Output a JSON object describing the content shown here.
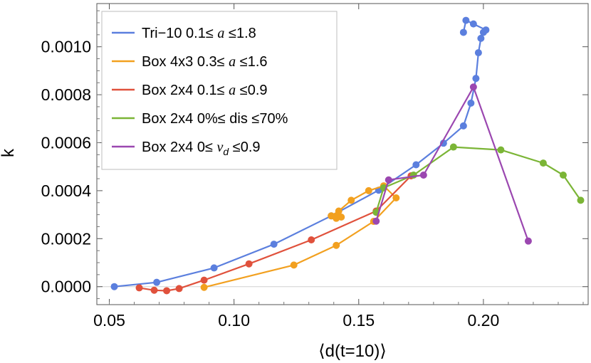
{
  "chart_data": {
    "type": "scatter",
    "title": "",
    "xlabel": "⟨d(t=10)⟩",
    "ylabel": "k",
    "xlim": [
      0.045,
      0.242
    ],
    "ylim": [
      -7.5e-05,
      0.00118
    ],
    "x_ticks": [
      {
        "value": 0.05,
        "label": "0.05"
      },
      {
        "value": 0.1,
        "label": "0.10"
      },
      {
        "value": 0.15,
        "label": "0.15"
      },
      {
        "value": 0.2,
        "label": "0.20"
      }
    ],
    "y_ticks": [
      {
        "value": 0.0,
        "label": "0.0000"
      },
      {
        "value": 0.0002,
        "label": "0.0002"
      },
      {
        "value": 0.0004,
        "label": "0.0004"
      },
      {
        "value": 0.0006,
        "label": "0.0006"
      },
      {
        "value": 0.0008,
        "label": "0.0008"
      },
      {
        "value": 0.001,
        "label": "0.0010"
      }
    ],
    "legend_position": "top-left",
    "series": [
      {
        "name": "Tri−10 0.1≤ a ≤1.8",
        "legend_parts": {
          "prefix": "Tri−10 0.1≤ ",
          "var": "a",
          "sub": "",
          "suffix": " ≤1.8"
        },
        "color": "#5b7fde",
        "points": [
          [
            0.052,
            0.0
          ],
          [
            0.069,
            1.8e-05
          ],
          [
            0.092,
            7.8e-05
          ],
          [
            0.116,
            0.000177
          ],
          [
            0.139,
            0.000295
          ],
          [
            0.158,
            0.000402
          ],
          [
            0.173,
            0.000508
          ],
          [
            0.184,
            0.000598
          ],
          [
            0.192,
            0.00067
          ],
          [
            0.195,
            0.000765
          ],
          [
            0.197,
            0.000868
          ],
          [
            0.198,
            0.000975
          ],
          [
            0.199,
            0.001035
          ],
          [
            0.2,
            0.00106
          ],
          [
            0.201,
            0.00107
          ],
          [
            0.196,
            0.001095
          ],
          [
            0.193,
            0.00111
          ],
          [
            0.192,
            0.00106
          ]
        ]
      },
      {
        "name": "Box 4x3 0.3≤ a ≤1.6",
        "legend_parts": {
          "prefix": "Box 4x3 0.3≤ ",
          "var": "a",
          "sub": "",
          "suffix": " ≤1.6"
        },
        "color": "#f2a01f",
        "points": [
          [
            0.088,
            -3e-06
          ],
          [
            0.124,
            9e-05
          ],
          [
            0.141,
            0.000172
          ],
          [
            0.156,
            0.000272
          ],
          [
            0.165,
            0.00037
          ],
          [
            0.16,
            0.00042
          ],
          [
            0.154,
            0.0004
          ],
          [
            0.147,
            0.00036
          ],
          [
            0.142,
            0.000315
          ],
          [
            0.141,
            0.000295
          ],
          [
            0.139,
            0.000295
          ],
          [
            0.141,
            0.000285
          ],
          [
            0.143,
            0.00029
          ]
        ]
      },
      {
        "name": "Box 2x4 0.1≤ a ≤0.9",
        "legend_parts": {
          "prefix": "Box 2x4 0.1≤ ",
          "var": "a",
          "sub": "",
          "suffix": " ≤0.9"
        },
        "color": "#e0513c",
        "points": [
          [
            0.062,
            -5e-06
          ],
          [
            0.068,
            -1.5e-05
          ],
          [
            0.073,
            -1.7e-05
          ],
          [
            0.078,
            -8e-06
          ],
          [
            0.088,
            2.7e-05
          ],
          [
            0.106,
            9.5e-05
          ],
          [
            0.131,
            0.000195
          ],
          [
            0.157,
            0.000315
          ],
          [
            0.171,
            0.000462
          ]
        ]
      },
      {
        "name": "Box 2x4 0%≤ dis ≤70%",
        "legend_parts": {
          "prefix": "Box 2x4 0%≤ dis ≤70%",
          "var": "",
          "sub": "",
          "suffix": ""
        },
        "color": "#7bb536",
        "points": [
          [
            0.157,
            0.00031
          ],
          [
            0.16,
            0.000412
          ],
          [
            0.172,
            0.000465
          ],
          [
            0.188,
            0.000582
          ],
          [
            0.207,
            0.00057
          ],
          [
            0.224,
            0.000515
          ],
          [
            0.232,
            0.000465
          ],
          [
            0.239,
            0.00036
          ]
        ]
      },
      {
        "name": "Box 2x4 0≤ v_d ≤0.9",
        "legend_parts": {
          "prefix": "Box 2x4 0≤ ",
          "var": "v",
          "sub": "d",
          "suffix": " ≤0.9"
        },
        "color": "#9b47b0",
        "points": [
          [
            0.157,
            0.000273
          ],
          [
            0.162,
            0.000445
          ],
          [
            0.176,
            0.000465
          ],
          [
            0.196,
            0.000832
          ],
          [
            0.218,
            0.00019
          ]
        ]
      }
    ]
  }
}
